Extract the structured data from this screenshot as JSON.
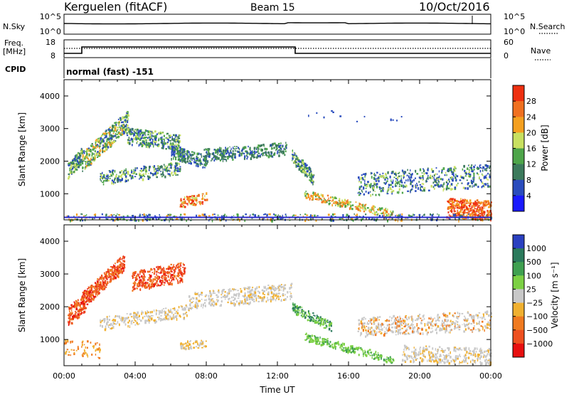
{
  "header": {
    "station": "Kerguelen (fitACF)",
    "beam": "Beam 15",
    "date": "10/Oct/2016"
  },
  "top_panels": {
    "nsky": {
      "label": "N.Sky",
      "ticks": [
        "10^5",
        "10^0"
      ]
    },
    "nsearch": {
      "label": "N.Search",
      "ticks": [
        "10^5",
        "10^0"
      ]
    },
    "freq": {
      "label_line1": "Freq.",
      "label_line2": "[MHz]",
      "ticks": [
        "18",
        "8"
      ]
    },
    "nave": {
      "label": "Nave",
      "ticks": [
        "60",
        "0"
      ]
    },
    "cpid": {
      "label": "CPID",
      "value": "normal (fast) -151"
    }
  },
  "chart_data": [
    {
      "type": "heatmap",
      "name": "power",
      "ylabel": "Slant Range [km]",
      "xlabel": "",
      "y_ticks": [
        "4000",
        "3000",
        "2000",
        "1000"
      ],
      "y_tick_values": [
        4000,
        3000,
        2000,
        1000
      ],
      "ylim": [
        200,
        4500
      ],
      "colorbar": {
        "label": "Power [dB]",
        "ticks": [
          "28",
          "24",
          "20",
          "16",
          "12",
          "8",
          "4"
        ],
        "colors": [
          "#1a1aff",
          "#2a4cbd",
          "#3c7a5c",
          "#4ea54a",
          "#c8e060",
          "#f5a020",
          "#f07020",
          "#ee3010"
        ]
      }
    },
    {
      "type": "heatmap",
      "name": "velocity",
      "ylabel": "Slant Range [km]",
      "xlabel": "Time UT",
      "y_ticks": [
        "4000",
        "3000",
        "2000",
        "1000"
      ],
      "y_tick_values": [
        4000,
        3000,
        2000,
        1000
      ],
      "ylim": [
        200,
        4500
      ],
      "x_ticks": [
        "00:00",
        "04:00",
        "08:00",
        "12:00",
        "16:00",
        "20:00",
        "00:00"
      ],
      "x_tick_hours": [
        0,
        4,
        8,
        12,
        16,
        20,
        24
      ],
      "colorbar": {
        "label": "Velocity [m s⁻¹]",
        "ticks": [
          "1000",
          "500",
          "100",
          "25",
          "−25",
          "−100",
          "−500",
          "−1000"
        ],
        "colors": [
          "#2a40c0",
          "#2b7a5c",
          "#3fa050",
          "#7cd044",
          "#c8c8c8",
          "#f0b030",
          "#f07a20",
          "#ee5020",
          "#e81010"
        ]
      }
    }
  ]
}
